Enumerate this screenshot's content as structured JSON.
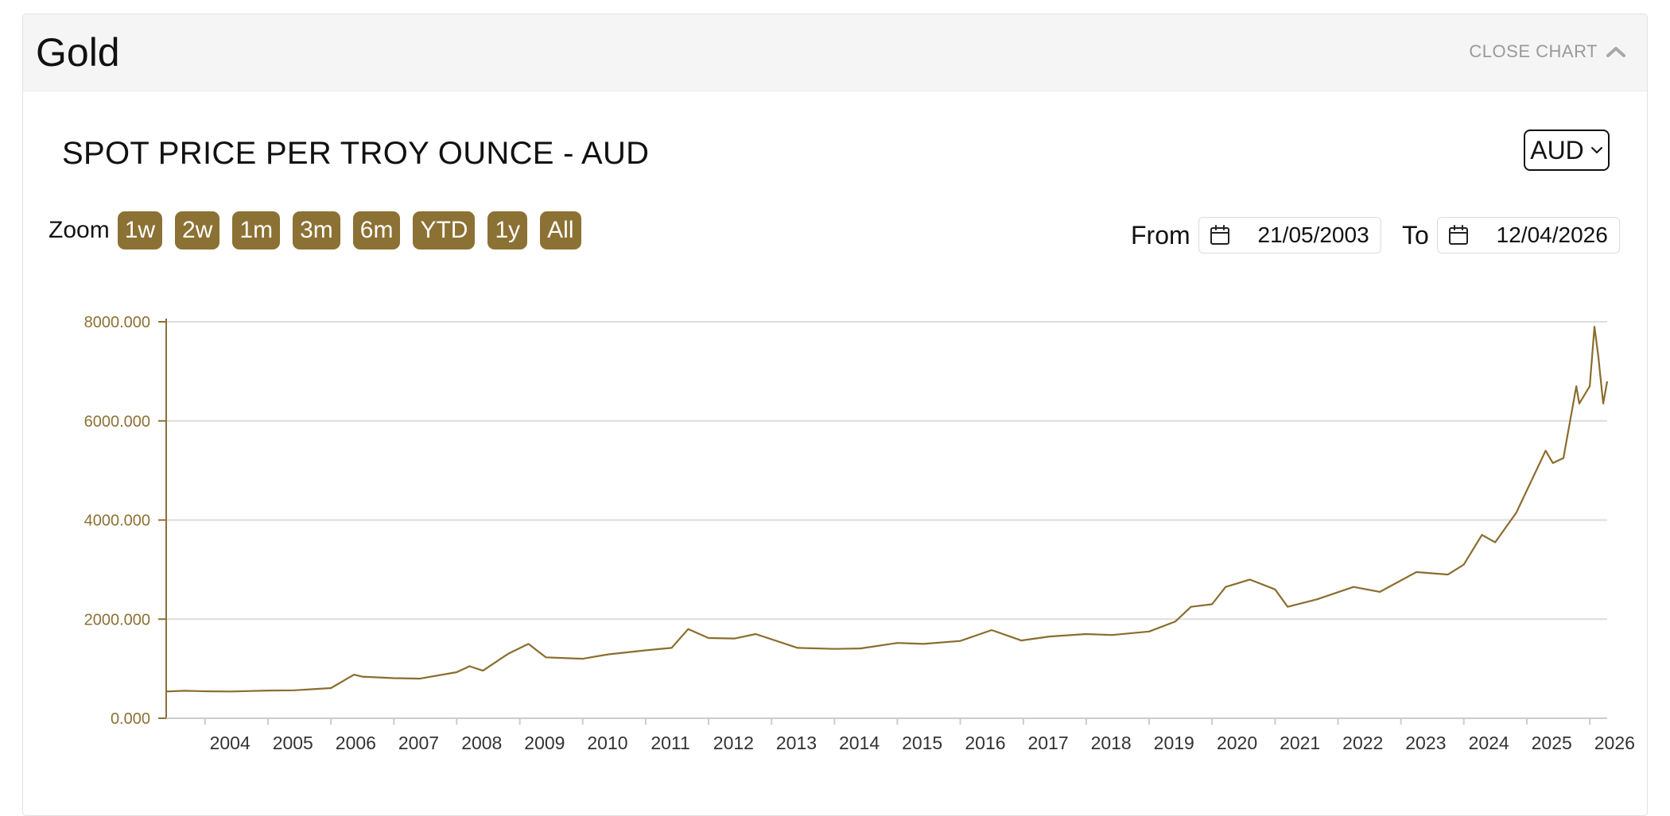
{
  "header": {
    "title": "Gold",
    "close_label": "CLOSE CHART",
    "close_icon": "chevron-up-icon"
  },
  "chart_title": "SPOT PRICE PER TROY OUNCE - AUD",
  "currency": {
    "selected": "AUD",
    "icon": "chevron-down-icon"
  },
  "zoom": {
    "label": "Zoom",
    "buttons": [
      "1w",
      "2w",
      "1m",
      "3m",
      "6m",
      "YTD",
      "1y",
      "All"
    ]
  },
  "range": {
    "from_label": "From",
    "from_value": "21/05/2003",
    "to_label": "To",
    "to_value": "12/04/2026",
    "icon": "calendar-icon"
  },
  "colors": {
    "accent": "#8c7134",
    "line": "#8a6d2e",
    "axis_text_y": "#8c7134",
    "gridline": "#dddddd"
  },
  "chart_data": {
    "type": "line",
    "title": "",
    "xlabel": "",
    "ylabel": "",
    "ylim": [
      0,
      8000
    ],
    "yticks": [
      "0.000",
      "2000.000",
      "4000.000",
      "6000.000",
      "8000.000"
    ],
    "xticks": [
      "2004",
      "2005",
      "2006",
      "2007",
      "2008",
      "2009",
      "2010",
      "2011",
      "2012",
      "2013",
      "2014",
      "2015",
      "2016",
      "2017",
      "2018",
      "2019",
      "2020",
      "2021",
      "2022",
      "2023",
      "2024",
      "2025",
      "2026"
    ],
    "grid": true,
    "legend": "none",
    "series": [
      {
        "values": [
          [
            "2003-05-21",
            540
          ],
          [
            "2003-09-01",
            555
          ],
          [
            "2004-01-01",
            545
          ],
          [
            "2004-06-01",
            540
          ],
          [
            "2005-01-01",
            560
          ],
          [
            "2005-06-01",
            565
          ],
          [
            "2006-01-01",
            610
          ],
          [
            "2006-05-15",
            880
          ],
          [
            "2006-07-01",
            840
          ],
          [
            "2007-01-01",
            810
          ],
          [
            "2007-06-01",
            800
          ],
          [
            "2008-01-01",
            930
          ],
          [
            "2008-03-15",
            1050
          ],
          [
            "2008-06-01",
            960
          ],
          [
            "2008-10-25",
            1300
          ],
          [
            "2009-02-20",
            1500
          ],
          [
            "2009-06-01",
            1230
          ],
          [
            "2010-01-01",
            1200
          ],
          [
            "2010-06-01",
            1290
          ],
          [
            "2011-01-01",
            1370
          ],
          [
            "2011-06-01",
            1420
          ],
          [
            "2011-09-05",
            1800
          ],
          [
            "2012-01-01",
            1620
          ],
          [
            "2012-06-01",
            1610
          ],
          [
            "2012-10-01",
            1700
          ],
          [
            "2013-06-01",
            1420
          ],
          [
            "2014-01-01",
            1400
          ],
          [
            "2014-06-01",
            1410
          ],
          [
            "2015-01-01",
            1520
          ],
          [
            "2015-06-01",
            1500
          ],
          [
            "2016-01-01",
            1560
          ],
          [
            "2016-07-01",
            1780
          ],
          [
            "2016-12-20",
            1570
          ],
          [
            "2017-06-01",
            1650
          ],
          [
            "2018-01-01",
            1700
          ],
          [
            "2018-06-01",
            1680
          ],
          [
            "2019-01-01",
            1750
          ],
          [
            "2019-06-01",
            1950
          ],
          [
            "2019-09-01",
            2250
          ],
          [
            "2020-01-01",
            2300
          ],
          [
            "2020-03-20",
            2650
          ],
          [
            "2020-08-07",
            2800
          ],
          [
            "2021-01-01",
            2600
          ],
          [
            "2021-03-15",
            2250
          ],
          [
            "2021-09-01",
            2400
          ],
          [
            "2022-04-01",
            2650
          ],
          [
            "2022-09-01",
            2550
          ],
          [
            "2023-04-01",
            2950
          ],
          [
            "2023-10-01",
            2900
          ],
          [
            "2024-01-01",
            3100
          ],
          [
            "2024-04-15",
            3700
          ],
          [
            "2024-07-01",
            3550
          ],
          [
            "2024-11-01",
            4150
          ],
          [
            "2025-04-20",
            5400
          ],
          [
            "2025-06-01",
            5150
          ],
          [
            "2025-08-01",
            5250
          ],
          [
            "2025-10-15",
            6700
          ],
          [
            "2025-11-01",
            6350
          ],
          [
            "2026-01-01",
            6700
          ],
          [
            "2026-01-28",
            7900
          ],
          [
            "2026-02-20",
            7300
          ],
          [
            "2026-03-20",
            6350
          ],
          [
            "2026-04-12",
            6800
          ]
        ]
      }
    ]
  }
}
